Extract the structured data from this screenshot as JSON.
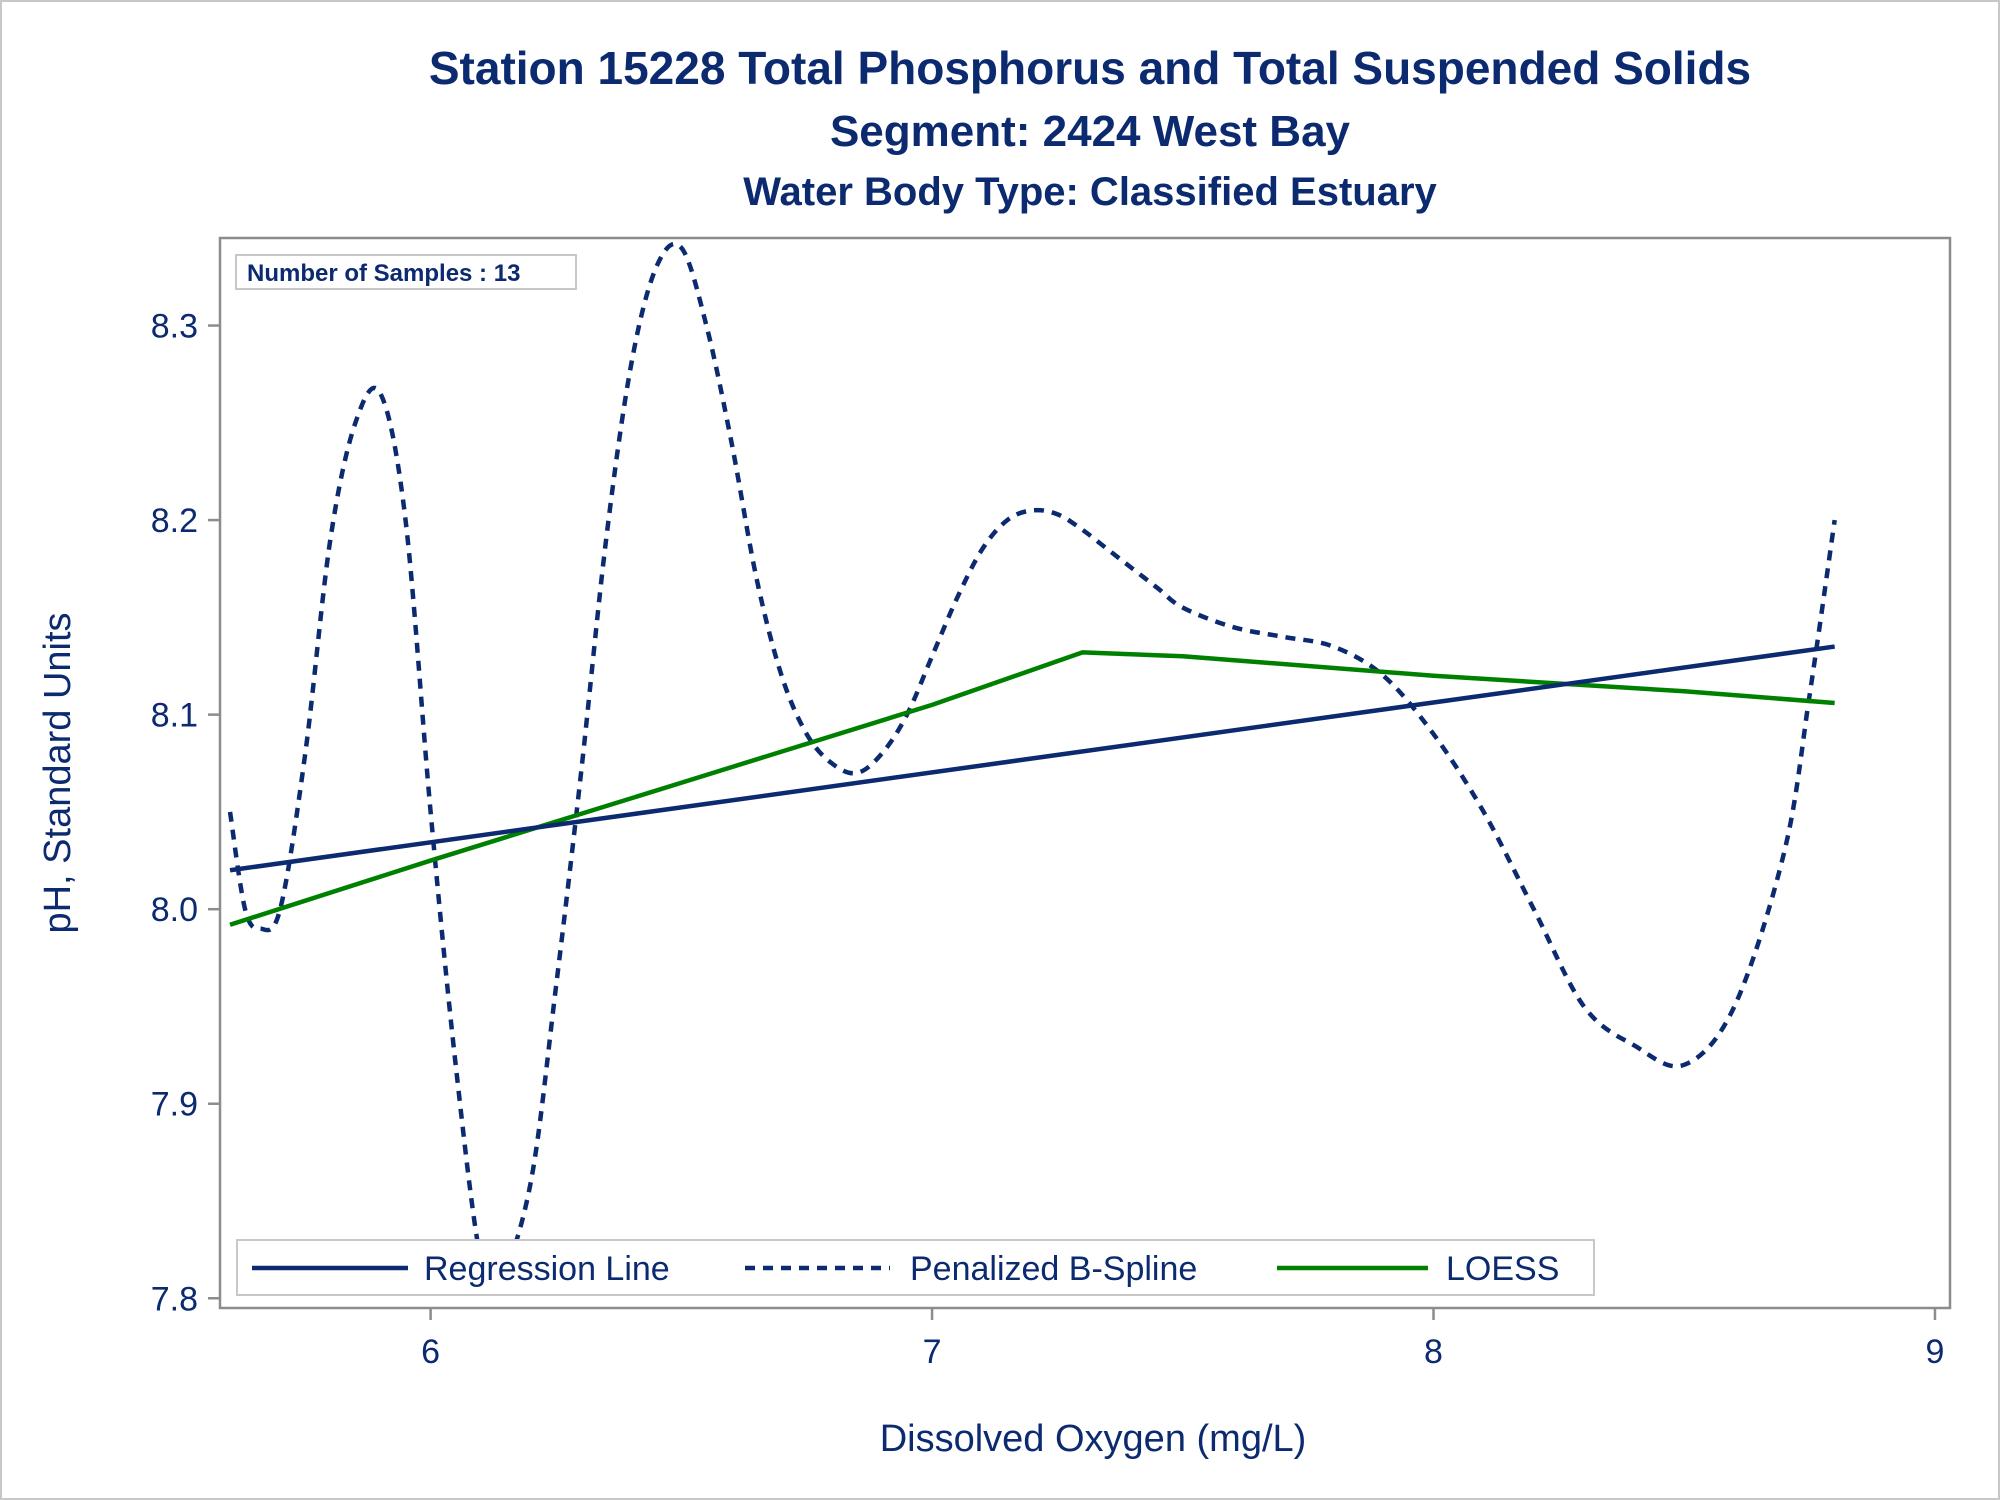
{
  "chart_data": {
    "type": "line",
    "title": "Station 15228  Total Phosphorus and Total Suspended Solids",
    "subtitle": "Segment: 2424  West Bay",
    "subtitle2": "Water Body Type: Classified Estuary",
    "xlabel": "Dissolved Oxygen (mg/L)",
    "ylabel": "pH, Standard Units",
    "xlim": [
      5.58,
      9.03
    ],
    "ylim": [
      7.795,
      8.345
    ],
    "x_ticks": [
      6,
      7,
      8,
      9
    ],
    "y_ticks": [
      7.8,
      7.9,
      8.0,
      8.1,
      8.2,
      8.3
    ],
    "x_tick_labels": [
      "6",
      "7",
      "8",
      "9"
    ],
    "y_tick_labels": [
      "7.8",
      "7.9",
      "8.0",
      "8.1",
      "8.2",
      "8.3"
    ],
    "grid": false,
    "legend_position": "bottom-left inside",
    "annotation": "Number of Samples : 13",
    "series": [
      {
        "name": "Regression Line",
        "style": "solid",
        "color": "#0b2a6f",
        "x": [
          5.6,
          8.8
        ],
        "y": [
          8.02,
          8.135
        ]
      },
      {
        "name": "Penalized B-Spline",
        "style": "dashed",
        "color": "#0b2a6f",
        "x": [
          5.6,
          5.63,
          5.66,
          5.7,
          5.75,
          5.8,
          5.85,
          5.9,
          5.95,
          6.0,
          6.05,
          6.1,
          6.14,
          6.2,
          6.25,
          6.3,
          6.35,
          6.4,
          6.45,
          6.5,
          6.55,
          6.6,
          6.65,
          6.7,
          6.75,
          6.8,
          6.85,
          6.9,
          6.95,
          7.0,
          7.05,
          7.1,
          7.15,
          7.2,
          7.25,
          7.3,
          7.35,
          7.4,
          7.45,
          7.5,
          7.6,
          7.7,
          7.8,
          7.9,
          8.0,
          8.1,
          8.2,
          8.3,
          8.4,
          8.5,
          8.6,
          8.7,
          8.75,
          8.8
        ],
        "y": [
          8.05,
          8.0,
          7.99,
          8.0,
          8.08,
          8.19,
          8.25,
          8.265,
          8.2,
          8.05,
          7.92,
          7.82,
          7.81,
          7.86,
          7.96,
          8.07,
          8.19,
          8.28,
          8.33,
          8.34,
          8.3,
          8.24,
          8.17,
          8.12,
          8.09,
          8.075,
          8.07,
          8.08,
          8.1,
          8.13,
          8.16,
          8.185,
          8.2,
          8.205,
          8.203,
          8.195,
          8.185,
          8.175,
          8.165,
          8.155,
          8.145,
          8.14,
          8.135,
          8.12,
          8.09,
          8.05,
          8.0,
          7.95,
          7.93,
          7.92,
          7.95,
          8.03,
          8.11,
          8.2
        ]
      },
      {
        "name": "LOESS",
        "style": "solid",
        "color": "#008000",
        "x": [
          5.6,
          6.0,
          6.5,
          7.0,
          7.3,
          7.5,
          8.0,
          8.5,
          8.8
        ],
        "y": [
          7.992,
          8.025,
          8.065,
          8.105,
          8.132,
          8.13,
          8.12,
          8.112,
          8.106
        ]
      }
    ]
  }
}
